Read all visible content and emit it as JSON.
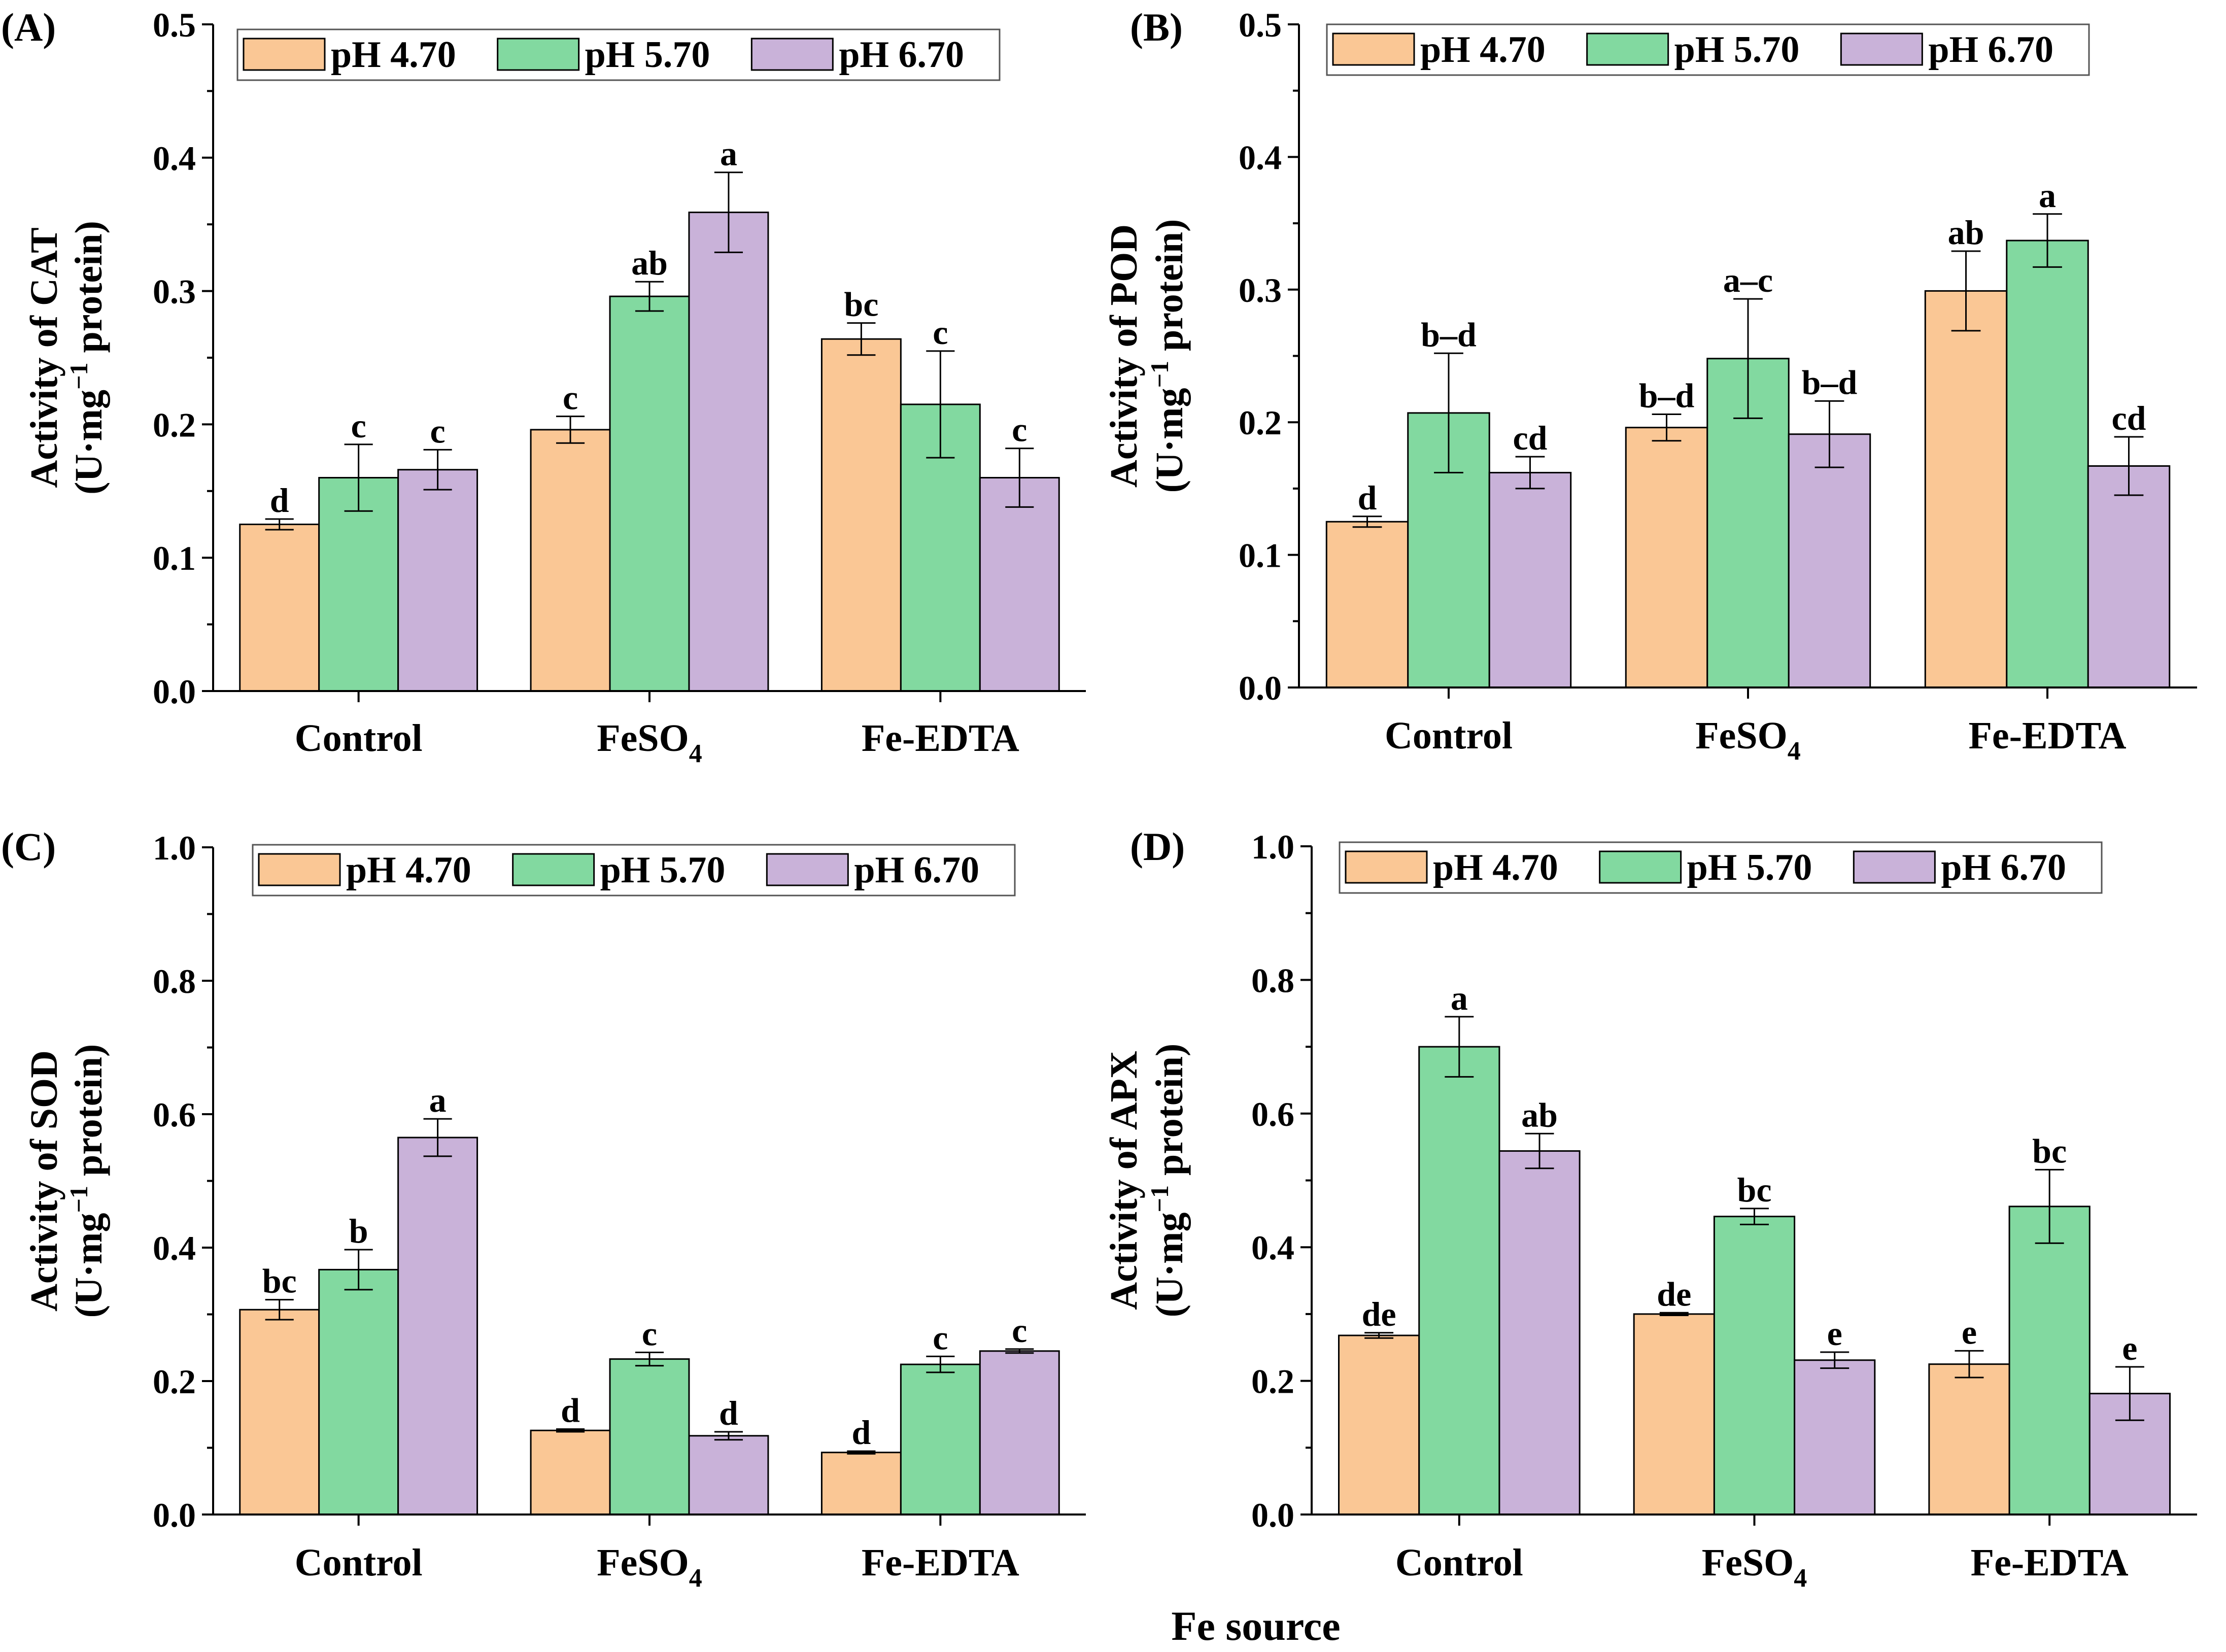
{
  "figure": {
    "xlabel": "Fe source",
    "colors": {
      "pH 4.70": "#FAC795",
      "pH 5.70": "#82D9A0",
      "pH 6.70": "#C9B2D9",
      "axis": "#000000"
    }
  },
  "chart_data": [
    {
      "type": "bar",
      "panel_label": "(A)",
      "ylabel_line1": "Activity of CAT",
      "ylabel_line2_pre": "(U·mg",
      "ylabel_line2_sup": "−1",
      "ylabel_line2_post": " protein)",
      "categories": [
        {
          "main": "Control",
          "sub": ""
        },
        {
          "main": "FeSO",
          "sub": "4"
        },
        {
          "main": "Fe-EDTA",
          "sub": ""
        }
      ],
      "ylim": [
        0,
        0.5
      ],
      "yticks": [
        0.0,
        0.1,
        0.2,
        0.3,
        0.4,
        0.5
      ],
      "tick_decimals": 1,
      "series": [
        {
          "name": "pH 4.70",
          "values": [
            0.125,
            0.196,
            0.264
          ],
          "errors": [
            0.004,
            0.01,
            0.012
          ],
          "letters": [
            "d",
            "c",
            "bc"
          ]
        },
        {
          "name": "pH 5.70",
          "values": [
            0.16,
            0.296,
            0.215
          ],
          "errors": [
            0.025,
            0.011,
            0.04
          ],
          "letters": [
            "c",
            "ab",
            "c"
          ]
        },
        {
          "name": "pH 6.70",
          "values": [
            0.166,
            0.359,
            0.16
          ],
          "errors": [
            0.015,
            0.03,
            0.022
          ],
          "letters": [
            "c",
            "a",
            "c"
          ]
        }
      ]
    },
    {
      "type": "bar",
      "panel_label": "(B)",
      "ylabel_line1": "Activity of POD",
      "ylabel_line2_pre": "(U·mg",
      "ylabel_line2_sup": "−1",
      "ylabel_line2_post": " protein)",
      "categories": [
        {
          "main": "Control",
          "sub": ""
        },
        {
          "main": "FeSO",
          "sub": "4"
        },
        {
          "main": "Fe-EDTA",
          "sub": ""
        }
      ],
      "ylim": [
        0,
        0.5
      ],
      "yticks": [
        0.0,
        0.1,
        0.2,
        0.3,
        0.4,
        0.5
      ],
      "tick_decimals": 1,
      "series": [
        {
          "name": "pH 4.70",
          "values": [
            0.125,
            0.196,
            0.299
          ],
          "errors": [
            0.004,
            0.01,
            0.03
          ],
          "letters": [
            "d",
            "b–d",
            "ab"
          ]
        },
        {
          "name": "pH 5.70",
          "values": [
            0.207,
            0.248,
            0.337
          ],
          "errors": [
            0.045,
            0.045,
            0.02
          ],
          "letters": [
            "b–d",
            "a–c",
            "a"
          ]
        },
        {
          "name": "pH 6.70",
          "values": [
            0.162,
            0.191,
            0.167
          ],
          "errors": [
            0.012,
            0.025,
            0.022
          ],
          "letters": [
            "cd",
            "b–d",
            "cd"
          ]
        }
      ]
    },
    {
      "type": "bar",
      "panel_label": "(C)",
      "ylabel_line1": "Activity of SOD",
      "ylabel_line2_pre": "(U·mg",
      "ylabel_line2_sup": "−1",
      "ylabel_line2_post": " protein)",
      "categories": [
        {
          "main": "Control",
          "sub": ""
        },
        {
          "main": "FeSO",
          "sub": "4"
        },
        {
          "main": "Fe-EDTA",
          "sub": ""
        }
      ],
      "ylim": [
        0,
        1.0
      ],
      "yticks": [
        0.0,
        0.2,
        0.4,
        0.6,
        0.8,
        1.0
      ],
      "tick_decimals": 1,
      "series": [
        {
          "name": "pH 4.70",
          "values": [
            0.307,
            0.126,
            0.093
          ],
          "errors": [
            0.015,
            0.002,
            0.002
          ],
          "letters": [
            "bc",
            "d",
            "d"
          ]
        },
        {
          "name": "pH 5.70",
          "values": [
            0.367,
            0.233,
            0.225
          ],
          "errors": [
            0.03,
            0.01,
            0.012
          ],
          "letters": [
            "b",
            "c",
            "c"
          ]
        },
        {
          "name": "pH 6.70",
          "values": [
            0.565,
            0.118,
            0.245
          ],
          "errors": [
            0.028,
            0.006,
            0.003
          ],
          "letters": [
            "a",
            "d",
            "c"
          ]
        }
      ]
    },
    {
      "type": "bar",
      "panel_label": "(D)",
      "ylabel_line1": "Activity of APX",
      "ylabel_line2_pre": "(U·mg",
      "ylabel_line2_sup": "−1",
      "ylabel_line2_post": " protein)",
      "categories": [
        {
          "main": "Control",
          "sub": ""
        },
        {
          "main": "FeSO",
          "sub": "4"
        },
        {
          "main": "Fe-EDTA",
          "sub": ""
        }
      ],
      "ylim": [
        0,
        1.0
      ],
      "yticks": [
        0.0,
        0.2,
        0.4,
        0.6,
        0.8,
        1.0
      ],
      "tick_decimals": 1,
      "series": [
        {
          "name": "pH 4.70",
          "values": [
            0.268,
            0.3,
            0.225
          ],
          "errors": [
            0.004,
            0.002,
            0.02
          ],
          "letters": [
            "de",
            "de",
            "e"
          ]
        },
        {
          "name": "pH 5.70",
          "values": [
            0.7,
            0.446,
            0.461
          ],
          "errors": [
            0.045,
            0.012,
            0.055
          ],
          "letters": [
            "a",
            "bc",
            "bc"
          ]
        },
        {
          "name": "pH 6.70",
          "values": [
            0.544,
            0.231,
            0.181
          ],
          "errors": [
            0.026,
            0.012,
            0.04
          ],
          "letters": [
            "ab",
            "e",
            "e"
          ]
        }
      ]
    }
  ]
}
